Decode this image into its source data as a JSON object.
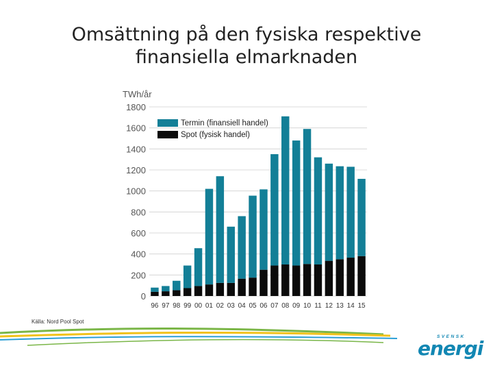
{
  "title_lines": [
    "Omsättning på den fysiska respektive",
    "finansiella elmarknaden"
  ],
  "source": "Källa: Nord Pool Spot",
  "logo": {
    "top_text": "SVENSK",
    "word": "energi"
  },
  "colors": {
    "termin": "#137f97",
    "spot": "#0b0b0b",
    "logo": "#1287b3",
    "swoosh_green": "#7ab648",
    "swoosh_yellow": "#f2c21b",
    "swoosh_blue": "#2b9fd6",
    "grid": "#cfcfcf"
  },
  "chart_data": {
    "type": "bar",
    "stacked": true,
    "ylabel": "TWh/år",
    "ylim": [
      0,
      1800
    ],
    "yticks": [
      0,
      200,
      400,
      600,
      800,
      1000,
      1200,
      1400,
      1600,
      1800
    ],
    "grid": true,
    "legend_position": "top-left",
    "categories": [
      "96",
      "97",
      "98",
      "99",
      "00",
      "01",
      "02",
      "03",
      "04",
      "05",
      "06",
      "07",
      "08",
      "09",
      "10",
      "11",
      "12",
      "13",
      "14",
      "15"
    ],
    "series": [
      {
        "name": "Spot (fysisk handel)",
        "color": "#0b0b0b",
        "values": [
          40,
          45,
          55,
          75,
          95,
          110,
          125,
          125,
          165,
          175,
          250,
          290,
          300,
          290,
          305,
          300,
          335,
          350,
          365,
          380
        ]
      },
      {
        "name": "Termin (finansiell handel)",
        "color": "#137f97",
        "values": [
          40,
          50,
          90,
          215,
          360,
          910,
          1015,
          535,
          595,
          780,
          765,
          1060,
          1410,
          1190,
          1285,
          1020,
          925,
          885,
          865,
          735
        ]
      }
    ],
    "totals": [
      80,
      95,
      145,
      290,
      455,
      1020,
      1140,
      660,
      760,
      955,
      1015,
      1350,
      1710,
      1480,
      1590,
      1320,
      1260,
      1235,
      1230,
      1115
    ]
  }
}
